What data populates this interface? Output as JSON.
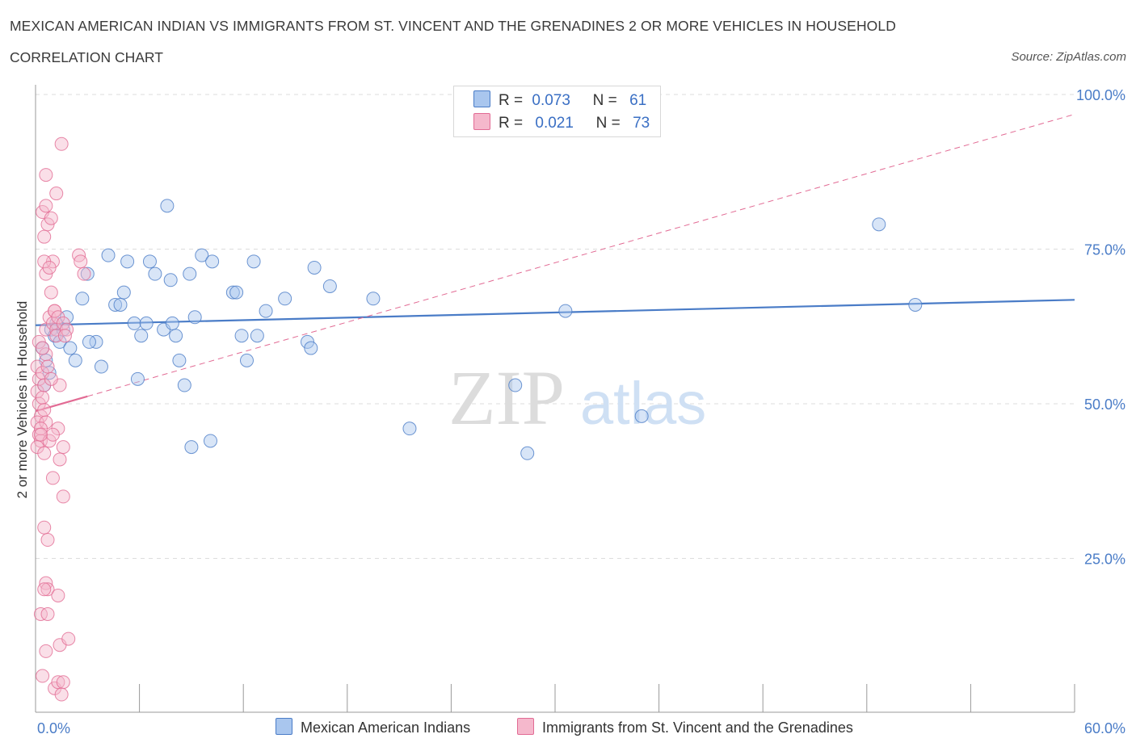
{
  "header": {
    "title": "MEXICAN AMERICAN INDIAN VS IMMIGRANTS FROM ST. VINCENT AND THE GRENADINES 2 OR MORE VEHICLES IN HOUSEHOLD",
    "subtitle": "CORRELATION CHART",
    "source": "Source: ZipAtlas.com"
  },
  "watermark": {
    "zip": "ZIP",
    "atlas": "atlas"
  },
  "legend": {
    "blue": {
      "r_label": "R =",
      "r_value": "0.073",
      "n_label": "N =",
      "n_value": "61"
    },
    "pink": {
      "r_label": "R =",
      "r_value": "0.021",
      "n_label": "N =",
      "n_value": "73"
    }
  },
  "colors": {
    "blue": "#4a7cc7",
    "blue_fill": "#a9c6ee",
    "pink": "#e26b94",
    "pink_fill": "#f5b8cc"
  },
  "chart_data": {
    "type": "scatter",
    "xlabel": "",
    "ylabel": "2 or more Vehicles in Household",
    "xlim": [
      0,
      60
    ],
    "ylim": [
      0,
      100
    ],
    "x_tick_labels": [
      "0.0%",
      "60.0%"
    ],
    "y_ticks": [
      25,
      50,
      75,
      100
    ],
    "y_tick_labels": [
      "25.0%",
      "50.0%",
      "75.0%",
      "100.0%"
    ],
    "grid": true,
    "series": [
      {
        "name": "Mexican American Indians",
        "color": "#4a7cc7",
        "points": [
          [
            0.4,
            59
          ],
          [
            0.6,
            57
          ],
          [
            0.8,
            55
          ],
          [
            0.5,
            53
          ],
          [
            0.9,
            62
          ],
          [
            1.1,
            61
          ],
          [
            1.4,
            60
          ],
          [
            1.6,
            62
          ],
          [
            1.2,
            63
          ],
          [
            1.8,
            64
          ],
          [
            2.0,
            59
          ],
          [
            2.3,
            57
          ],
          [
            2.7,
            67
          ],
          [
            3.0,
            71
          ],
          [
            3.5,
            60
          ],
          [
            3.8,
            56
          ],
          [
            4.2,
            74
          ],
          [
            4.6,
            66
          ],
          [
            4.9,
            66
          ],
          [
            5.1,
            68
          ],
          [
            5.3,
            73
          ],
          [
            5.7,
            63
          ],
          [
            5.9,
            54
          ],
          [
            6.1,
            61
          ],
          [
            6.4,
            63
          ],
          [
            6.6,
            73
          ],
          [
            6.9,
            71
          ],
          [
            7.4,
            62
          ],
          [
            7.9,
            63
          ],
          [
            7.8,
            70
          ],
          [
            8.1,
            61
          ],
          [
            8.3,
            57
          ],
          [
            8.6,
            53
          ],
          [
            8.9,
            71
          ],
          [
            9.2,
            64
          ],
          [
            9.6,
            74
          ],
          [
            10.2,
            73
          ],
          [
            11.4,
            68
          ],
          [
            11.6,
            68
          ],
          [
            11.9,
            61
          ],
          [
            12.2,
            57
          ],
          [
            12.6,
            73
          ],
          [
            12.8,
            61
          ],
          [
            13.3,
            65
          ],
          [
            14.4,
            67
          ],
          [
            15.7,
            60
          ],
          [
            15.9,
            59
          ],
          [
            16.1,
            72
          ],
          [
            17.0,
            69
          ],
          [
            19.5,
            67
          ],
          [
            21.6,
            46
          ],
          [
            7.6,
            82
          ],
          [
            9.0,
            43
          ],
          [
            10.1,
            44
          ],
          [
            27.7,
            53
          ],
          [
            28.4,
            42
          ],
          [
            30.6,
            65
          ],
          [
            35.0,
            48
          ],
          [
            48.7,
            79
          ],
          [
            50.8,
            66
          ],
          [
            3.1,
            60
          ]
        ]
      },
      {
        "name": "Immigrants from St. Vincent and the Grenadines",
        "color": "#e26b94",
        "points": [
          [
            0.1,
            56
          ],
          [
            0.2,
            54
          ],
          [
            0.1,
            52
          ],
          [
            0.2,
            50
          ],
          [
            0.3,
            48
          ],
          [
            0.1,
            47
          ],
          [
            0.2,
            45
          ],
          [
            0.3,
            44
          ],
          [
            0.1,
            43
          ],
          [
            0.4,
            55
          ],
          [
            0.5,
            53
          ],
          [
            0.6,
            58
          ],
          [
            0.7,
            56
          ],
          [
            0.4,
            51
          ],
          [
            0.5,
            49
          ],
          [
            0.6,
            47
          ],
          [
            0.3,
            46
          ],
          [
            0.8,
            44
          ],
          [
            0.5,
            42
          ],
          [
            0.6,
            62
          ],
          [
            0.8,
            64
          ],
          [
            1.0,
            63
          ],
          [
            1.1,
            65
          ],
          [
            1.2,
            62
          ],
          [
            0.9,
            68
          ],
          [
            1.0,
            73
          ],
          [
            0.5,
            73
          ],
          [
            0.6,
            71
          ],
          [
            0.7,
            79
          ],
          [
            0.5,
            77
          ],
          [
            0.4,
            81
          ],
          [
            0.6,
            82
          ],
          [
            0.9,
            80
          ],
          [
            0.6,
            87
          ],
          [
            1.2,
            84
          ],
          [
            1.5,
            92
          ],
          [
            0.8,
            72
          ],
          [
            2.5,
            74
          ],
          [
            2.6,
            73
          ],
          [
            1.1,
            65
          ],
          [
            1.3,
            64
          ],
          [
            1.6,
            63
          ],
          [
            1.8,
            62
          ],
          [
            1.4,
            53
          ],
          [
            1.3,
            46
          ],
          [
            1.0,
            45
          ],
          [
            1.4,
            41
          ],
          [
            1.6,
            43
          ],
          [
            1.0,
            38
          ],
          [
            1.6,
            35
          ],
          [
            0.5,
            30
          ],
          [
            0.7,
            28
          ],
          [
            0.6,
            21
          ],
          [
            0.7,
            20
          ],
          [
            0.5,
            20
          ],
          [
            1.3,
            19
          ],
          [
            0.3,
            16
          ],
          [
            0.7,
            16
          ],
          [
            0.6,
            10
          ],
          [
            1.4,
            11
          ],
          [
            1.9,
            12
          ],
          [
            0.4,
            6
          ],
          [
            1.1,
            4
          ],
          [
            1.3,
            5
          ],
          [
            1.6,
            5
          ],
          [
            1.5,
            3
          ],
          [
            0.2,
            60
          ],
          [
            0.3,
            45
          ],
          [
            0.4,
            59
          ],
          [
            1.2,
            61
          ],
          [
            2.8,
            71
          ],
          [
            0.9,
            54
          ],
          [
            1.7,
            61
          ]
        ]
      }
    ],
    "trend_lines": [
      {
        "series": "Mexican American Indians",
        "style": "solid",
        "from": [
          0,
          62.7
        ],
        "to": [
          60,
          66.8
        ]
      },
      {
        "series": "Immigrants from St. Vincent and the Grenadines",
        "style": "solid",
        "from": [
          0,
          48.8
        ],
        "to": [
          3,
          51.2
        ]
      },
      {
        "series": "Immigrants from St. Vincent and the Grenadines",
        "style": "dashed",
        "from": [
          3,
          51.2
        ],
        "to": [
          60,
          96.8
        ]
      }
    ]
  }
}
